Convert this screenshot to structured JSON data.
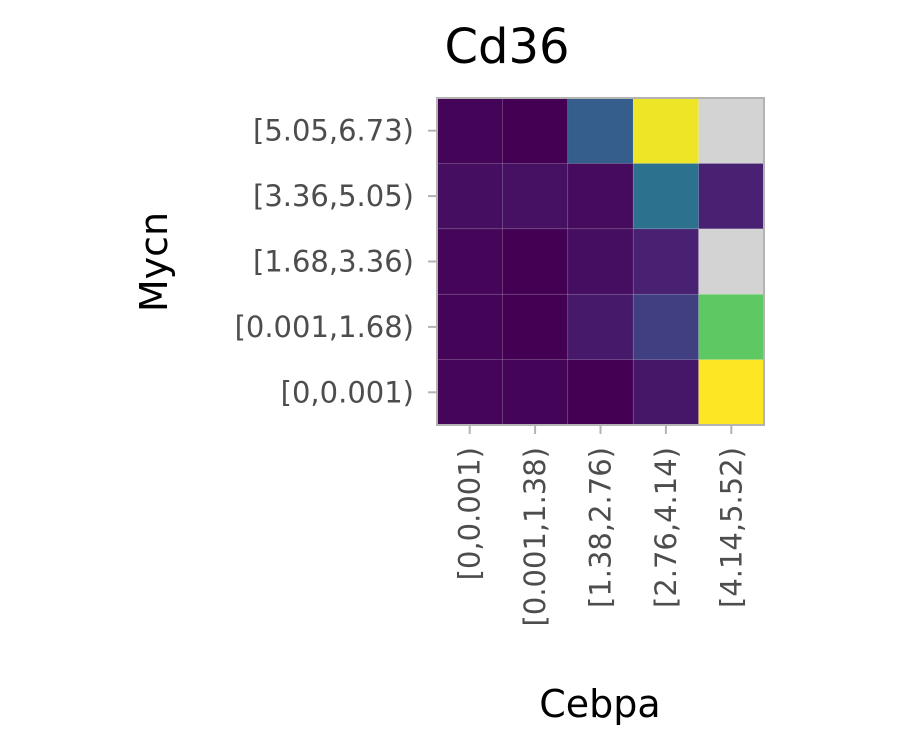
{
  "chart_data": {
    "type": "heatmap",
    "title": "Cd36",
    "xlabel": "Cebpa",
    "ylabel": "Mycn",
    "x_categories": [
      "[0,0.001)",
      "[0.001,1.38)",
      "[1.38,2.76)",
      "[2.76,4.14)",
      "[4.14,5.52)"
    ],
    "y_categories": [
      "[0,0.001)",
      "[0.001,1.68)",
      "[1.68,3.36)",
      "[3.36,5.05)",
      "[5.05,6.73)"
    ],
    "values": [
      [
        0.02,
        0.01,
        0.0,
        0.08,
        1.0
      ],
      [
        0.01,
        0.0,
        0.09,
        0.2,
        0.75
      ],
      [
        0.02,
        0.0,
        0.05,
        0.12,
        null
      ],
      [
        0.05,
        0.06,
        0.04,
        0.38,
        0.12
      ],
      [
        0.01,
        0.0,
        0.3,
        0.98,
        null
      ]
    ],
    "colormap": "viridis",
    "missing_color": "#d3d3d3",
    "panel_border_color": "#b3b3b3",
    "tick_color": "#b3b3b3"
  }
}
